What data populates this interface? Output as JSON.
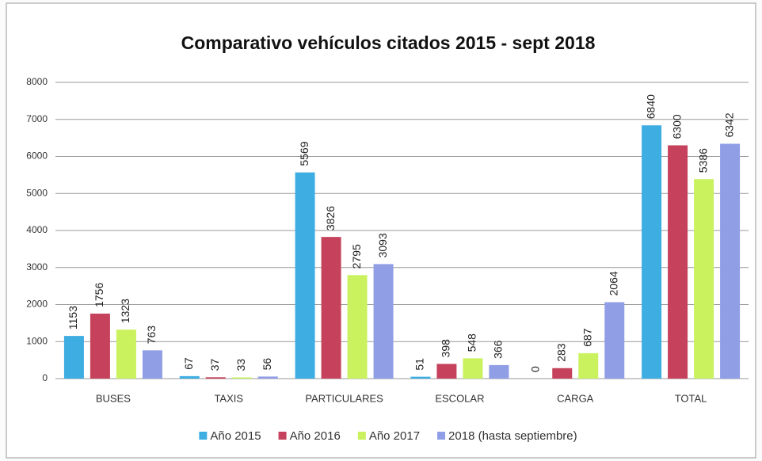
{
  "chart_data": {
    "type": "bar",
    "title": "Comparativo vehículos citados 2015 - sept 2018",
    "categories": [
      "BUSES",
      "TAXIS",
      "PARTICULARES",
      "ESCOLAR",
      "CARGA",
      "TOTAL"
    ],
    "series": [
      {
        "name": "Año 2015",
        "color": "#3eaee2",
        "values": [
          1153,
          67,
          5569,
          51,
          0,
          6840
        ]
      },
      {
        "name": "Año 2016",
        "color": "#c6425c",
        "values": [
          1756,
          37,
          3826,
          398,
          283,
          6300
        ]
      },
      {
        "name": "Año 2017",
        "color": "#c9f25e",
        "values": [
          1323,
          33,
          2795,
          548,
          687,
          5386
        ]
      },
      {
        "name": "2018 (hasta septiembre)",
        "color": "#909ee6",
        "values": [
          763,
          56,
          3093,
          366,
          2064,
          6342
        ]
      }
    ],
    "ylim": [
      0,
      8000
    ],
    "yticks": [
      0,
      1000,
      2000,
      3000,
      4000,
      5000,
      6000,
      7000,
      8000
    ],
    "grid": true,
    "legend": "bottom"
  }
}
